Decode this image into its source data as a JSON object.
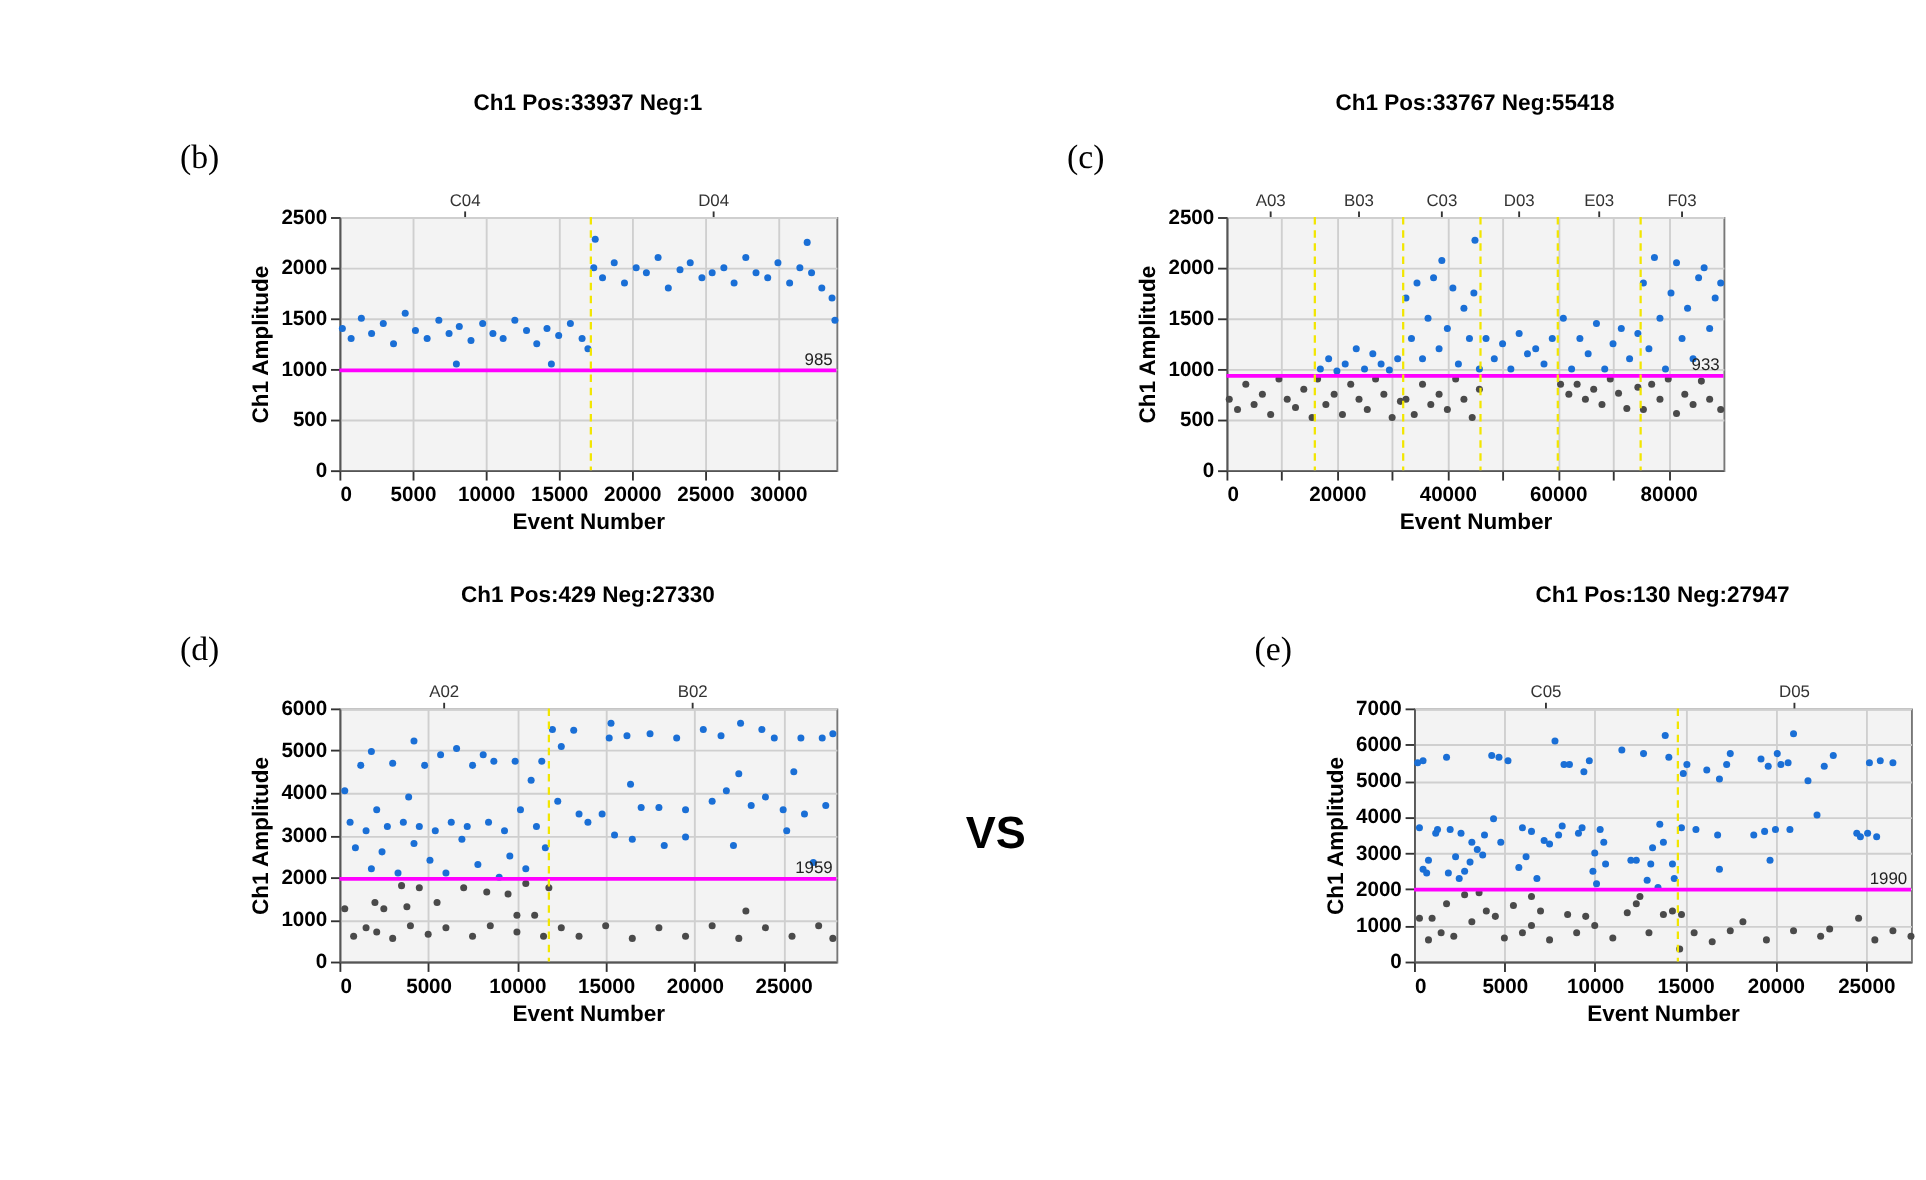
{
  "chart_data": [
    {
      "type": "scatter",
      "title": "Ch1 Pos:33937 Neg:1",
      "xlabel": "Event Number",
      "ylabel": "Ch1 Amplitude",
      "marker": "circle",
      "grid": true,
      "xlim": [
        0,
        34000
      ],
      "ylim": [
        0,
        2500
      ],
      "xticks": [
        0,
        5000,
        10000,
        15000,
        20000,
        25000,
        30000
      ],
      "yticks": [
        0,
        500,
        1000,
        1500,
        2000,
        2500
      ],
      "series": [
        {
          "color": "#1a6fd6",
          "x": [
            200,
            800,
            1500,
            2200,
            3000,
            3700,
            4500,
            5200,
            6000,
            6800,
            7500,
            8000,
            8200,
            9000,
            9800,
            10500,
            11200,
            12000,
            12800,
            13500,
            14200,
            14500,
            15000,
            15800,
            16600,
            17000,
            17400,
            17500,
            18000,
            18800,
            19500,
            20300,
            21000,
            21800,
            22500,
            23300,
            24000,
            24800,
            25500,
            26300,
            27000,
            27800,
            28500,
            29300,
            30000,
            30800,
            31500,
            32000,
            32300,
            33000,
            33700,
            33900
          ],
          "values": [
            1400,
            1300,
            1500,
            1350,
            1450,
            1250,
            1550,
            1380,
            1300,
            1480,
            1350,
            1050,
            1420,
            1280,
            1450,
            1350,
            1300,
            1480,
            1380,
            1250,
            1400,
            1050,
            1330,
            1450,
            1300,
            1200,
            2000,
            2280,
            1900,
            2050,
            1850,
            2000,
            1950,
            2100,
            1800,
            1980,
            2050,
            1900,
            1950,
            2000,
            1850,
            2100,
            1950,
            1900,
            2050,
            1850,
            2000,
            2250,
            1950,
            1800,
            1700,
            1480
          ]
        }
      ],
      "ref_lines": [
        {
          "axis": "y",
          "value": 985,
          "label": "985",
          "color": "#ff00ff"
        },
        {
          "axis": "x",
          "value": 17200,
          "color": "#f2e600",
          "line_style": "dashed"
        }
      ],
      "annotations": [
        "(b)",
        "C04",
        "D04"
      ]
    },
    {
      "type": "scatter",
      "title": "Ch1 Pos:33767 Neg:55418",
      "xlabel": "Event Number",
      "ylabel": "Ch1 Amplitude",
      "marker": "circle",
      "grid": true,
      "xlim": [
        0,
        90000
      ],
      "ylim": [
        0,
        2500
      ],
      "xticks": [
        0,
        {
          "value": 10000,
          "label": null
        },
        20000,
        {
          "value": 30000,
          "label": null
        },
        40000,
        {
          "value": 50000,
          "label": null
        },
        60000,
        {
          "value": 70000,
          "label": null
        },
        80000
      ],
      "yticks": [
        0,
        500,
        1000,
        1500,
        2000,
        2500
      ],
      "series": [
        {
          "color": "#4a4a4a",
          "x": [
            500,
            2000,
            3500,
            5000,
            6500,
            8000,
            9500,
            11000,
            12500,
            14000,
            15500,
            16500,
            18000,
            19500,
            21000,
            22500,
            24000,
            25500,
            27000,
            28500,
            30000,
            31500,
            32500,
            34000,
            35500,
            37000,
            38500,
            40000,
            41500,
            43000,
            44500,
            45800,
            60500,
            62000,
            63500,
            65000,
            66500,
            68000,
            69500,
            71000,
            72500,
            74500,
            75500,
            77000,
            78500,
            80000,
            81500,
            83000,
            84500,
            86000,
            87500,
            89500
          ],
          "values": [
            700,
            600,
            850,
            650,
            750,
            550,
            900,
            700,
            620,
            800,
            520,
            900,
            650,
            750,
            550,
            850,
            700,
            600,
            900,
            750,
            520,
            680,
            700,
            550,
            850,
            650,
            750,
            600,
            900,
            700,
            520,
            800,
            850,
            750,
            850,
            700,
            800,
            650,
            900,
            760,
            610,
            820,
            600,
            850,
            700,
            900,
            560,
            750,
            650,
            880,
            700,
            600
          ]
        },
        {
          "color": "#1a6fd6",
          "x": [
            17000,
            18500,
            20000,
            21500,
            23500,
            25000,
            26500,
            28000,
            29500,
            31000,
            32500,
            33500,
            34500,
            35500,
            36500,
            37500,
            38500,
            39000,
            40000,
            41000,
            42000,
            43000,
            44000,
            44800,
            45000,
            45800,
            47000,
            48500,
            50000,
            51500,
            53000,
            54500,
            56000,
            57500,
            59000,
            61000,
            62500,
            64000,
            65500,
            67000,
            68500,
            70000,
            71500,
            73000,
            74500,
            75500,
            76500,
            77500,
            78500,
            79500,
            80500,
            81500,
            82500,
            83500,
            84500,
            85500,
            86500,
            87500,
            88500,
            89500
          ],
          "values": [
            1000,
            1100,
            980,
            1050,
            1200,
            1000,
            1150,
            1050,
            990,
            1100,
            1700,
            1300,
            1850,
            1100,
            1500,
            1900,
            1200,
            2070,
            1400,
            1800,
            1050,
            1600,
            1300,
            1750,
            2270,
            1000,
            1300,
            1100,
            1250,
            1000,
            1350,
            1150,
            1200,
            1050,
            1300,
            1500,
            1000,
            1300,
            1150,
            1450,
            1000,
            1250,
            1400,
            1100,
            1350,
            1850,
            1200,
            2100,
            1500,
            1000,
            1750,
            2050,
            1300,
            1600,
            1100,
            1900,
            2000,
            1400,
            1700,
            1850
          ]
        }
      ],
      "ref_lines": [
        {
          "axis": "y",
          "value": 933,
          "label": "933",
          "color": "#ff00ff"
        },
        {
          "axis": "x",
          "value": 16000,
          "color": "#f2e600",
          "line_style": "dashed"
        },
        {
          "axis": "x",
          "value": 32000,
          "color": "#f2e600",
          "line_style": "dashed"
        },
        {
          "axis": "x",
          "value": 46000,
          "color": "#f2e600",
          "line_style": "dashed"
        },
        {
          "axis": "x",
          "value": 60000,
          "color": "#f2e600",
          "line_style": "dashed"
        },
        {
          "axis": "x",
          "value": 75000,
          "color": "#f2e600",
          "line_style": "dashed"
        }
      ],
      "annotations": [
        "(c)",
        "A03",
        "B03",
        "C03",
        "D03",
        "E03",
        "F03"
      ]
    },
    {
      "type": "scatter",
      "title": "Ch1 Pos:429 Neg:27330",
      "xlabel": "Event Number",
      "ylabel": "Ch1 Amplitude",
      "marker": "circle",
      "grid": true,
      "xlim": [
        0,
        28000
      ],
      "ylim": [
        0,
        6000
      ],
      "xticks": [
        0,
        5000,
        10000,
        15000,
        20000,
        25000
      ],
      "yticks": [
        0,
        1000,
        2000,
        3000,
        4000,
        5000,
        6000
      ],
      "series": [
        {
          "color": "#4a4a4a",
          "x": [
            300,
            800,
            1500,
            2000,
            2100,
            2500,
            3000,
            3500,
            3800,
            4000,
            4500,
            5000,
            5500,
            6000,
            7000,
            7500,
            8300,
            8500,
            9500,
            10000,
            10000,
            10500,
            11000,
            11500,
            11800,
            12500,
            13500,
            15000,
            16500,
            18000,
            19500,
            21000,
            22500,
            22900,
            24000,
            25500,
            27000,
            27800
          ],
          "values": [
            1250,
            600,
            800,
            1400,
            700,
            1250,
            550,
            1800,
            1300,
            850,
            1750,
            650,
            1400,
            800,
            1750,
            600,
            1650,
            850,
            1600,
            1100,
            700,
            1850,
            1100,
            600,
            1750,
            800,
            600,
            850,
            550,
            800,
            600,
            850,
            550,
            1200,
            800,
            600,
            850,
            550
          ]
        },
        {
          "color": "#1a6fd6",
          "x": [
            300,
            600,
            900,
            1200,
            1500,
            1800,
            1800,
            2100,
            2400,
            2700,
            3000,
            3300,
            3600,
            3900,
            4200,
            4200,
            4500,
            4800,
            5100,
            5400,
            5700,
            6000,
            6300,
            6600,
            6900,
            7200,
            7500,
            7800,
            8100,
            8400,
            8700,
            9000,
            9300,
            9600,
            9900,
            10200,
            10500,
            10800,
            11100,
            11400,
            11600,
            12000,
            12300,
            12500,
            13200,
            13500,
            14000,
            14800,
            15200,
            15300,
            15500,
            16200,
            16400,
            16500,
            17000,
            17500,
            18000,
            18300,
            19000,
            19500,
            19500,
            20500,
            21000,
            21500,
            21800,
            22200,
            22500,
            22600,
            23200,
            23800,
            24000,
            24500,
            25000,
            25200,
            25600,
            26000,
            26200,
            26700,
            27200,
            27400,
            27800
          ],
          "values": [
            4050,
            3300,
            2700,
            4650,
            3100,
            2200,
            4980,
            3600,
            2600,
            3200,
            4700,
            2100,
            3300,
            3900,
            5230,
            2800,
            3200,
            4650,
            2400,
            3100,
            4900,
            2100,
            3300,
            5050,
            2900,
            3200,
            4650,
            2300,
            4900,
            3300,
            4750,
            2000,
            3100,
            2500,
            4750,
            3600,
            2200,
            4300,
            3200,
            4750,
            2700,
            5500,
            3800,
            5100,
            5480,
            3500,
            3300,
            3500,
            5300,
            5650,
            3000,
            5350,
            4200,
            2900,
            3650,
            5400,
            3650,
            2750,
            5300,
            3600,
            2950,
            5500,
            3800,
            5350,
            4050,
            2750,
            4450,
            5650,
            3700,
            5500,
            3900,
            5300,
            3600,
            3100,
            4500,
            5300,
            3500,
            2350,
            5300,
            3700,
            5400
          ]
        }
      ],
      "ref_lines": [
        {
          "axis": "y",
          "value": 1959,
          "label": "1959",
          "color": "#ff00ff"
        },
        {
          "axis": "x",
          "value": 11800,
          "color": "#f2e600",
          "line_style": "dashed"
        }
      ],
      "annotations": [
        "(d)",
        "A02",
        "B02",
        "VS"
      ]
    },
    {
      "type": "scatter",
      "title": "Ch1 Pos:130 Neg:27947",
      "xlabel": "Event Number",
      "ylabel": "Ch1 Amplitude",
      "marker": "circle",
      "grid": true,
      "xlim": [
        0,
        27500
      ],
      "ylim": [
        0,
        7000
      ],
      "xticks": [
        0,
        5000,
        10000,
        15000,
        20000,
        25000
      ],
      "yticks": [
        0,
        1000,
        2000,
        3000,
        4000,
        5000,
        6000,
        7000
      ],
      "series": [
        {
          "color": "#4a4a4a",
          "x": [
            300,
            800,
            1000,
            1500,
            1800,
            2200,
            2800,
            3200,
            3600,
            4000,
            4500,
            5000,
            5500,
            6000,
            6500,
            6500,
            7000,
            7500,
            8500,
            9000,
            9500,
            10000,
            11000,
            11800,
            12300,
            12500,
            13000,
            13800,
            14300,
            14700,
            14800,
            15500,
            16500,
            17500,
            18200,
            19500,
            21000,
            22500,
            23000,
            24600,
            25500,
            26500,
            27500
          ],
          "values": [
            1200,
            600,
            1200,
            800,
            1600,
            700,
            1850,
            1100,
            1900,
            1400,
            1250,
            650,
            1550,
            800,
            1000,
            1800,
            1400,
            600,
            1300,
            800,
            1250,
            1000,
            650,
            1350,
            1600,
            1800,
            800,
            1300,
            1400,
            350,
            1300,
            800,
            550,
            850,
            1100,
            600,
            850,
            700,
            900,
            1200,
            600,
            850,
            700
          ]
        },
        {
          "color": "#1a6fd6",
          "x": [
            200,
            500,
            300,
            500,
            700,
            800,
            1200,
            1300,
            1800,
            1900,
            2000,
            2300,
            2500,
            2600,
            2800,
            3100,
            3200,
            3500,
            3800,
            3900,
            4300,
            4400,
            4700,
            4800,
            5200,
            5800,
            6000,
            6200,
            6500,
            6800,
            7200,
            7500,
            7800,
            8000,
            8200,
            8300,
            8600,
            9100,
            9300,
            9400,
            9700,
            9900,
            10000,
            10100,
            10300,
            10500,
            10600,
            11500,
            12000,
            12300,
            12700,
            12900,
            13100,
            13200,
            13500,
            13600,
            13800,
            13900,
            14100,
            14300,
            14400,
            14800,
            14900,
            15100,
            15600,
            16200,
            16800,
            16900,
            16900,
            17300,
            17500,
            18800,
            19200,
            19400,
            19600,
            19700,
            20000,
            20100,
            20300,
            20700,
            20800,
            21000,
            21800,
            22300,
            22700,
            23200,
            24500,
            24700,
            25100,
            25200,
            25600,
            25800,
            26500
          ],
          "values": [
            5500,
            5550,
            3700,
            2550,
            2450,
            2800,
            3550,
            3650,
            5650,
            2450,
            3650,
            2900,
            2300,
            3550,
            2500,
            2750,
            3300,
            3100,
            2950,
            3500,
            5700,
            3950,
            5650,
            3300,
            5550,
            2600,
            3700,
            2900,
            3600,
            2300,
            3350,
            3250,
            6100,
            3500,
            3750,
            5450,
            5450,
            3550,
            3700,
            5250,
            5550,
            2500,
            3000,
            2150,
            3650,
            3300,
            2700,
            5850,
            2800,
            2800,
            5750,
            2250,
            2700,
            3150,
            2050,
            3800,
            3300,
            6250,
            5650,
            2700,
            2300,
            3700,
            5200,
            5450,
            3650,
            5300,
            3500,
            5050,
            2550,
            5450,
            5750,
            3500,
            5600,
            3600,
            5400,
            2800,
            3650,
            5750,
            5450,
            5500,
            3650,
            6300,
            5000,
            4050,
            5400,
            5700,
            3550,
            3450,
            3550,
            5500,
            3450,
            5550,
            5500
          ]
        }
      ],
      "ref_lines": [
        {
          "axis": "y",
          "value": 1990,
          "label": "1990",
          "color": "#ff00ff"
        },
        {
          "axis": "x",
          "value": 14600,
          "color": "#f2e600",
          "line_style": "dashed"
        }
      ],
      "annotations": [
        "(e)",
        "C05",
        "D05"
      ]
    }
  ]
}
